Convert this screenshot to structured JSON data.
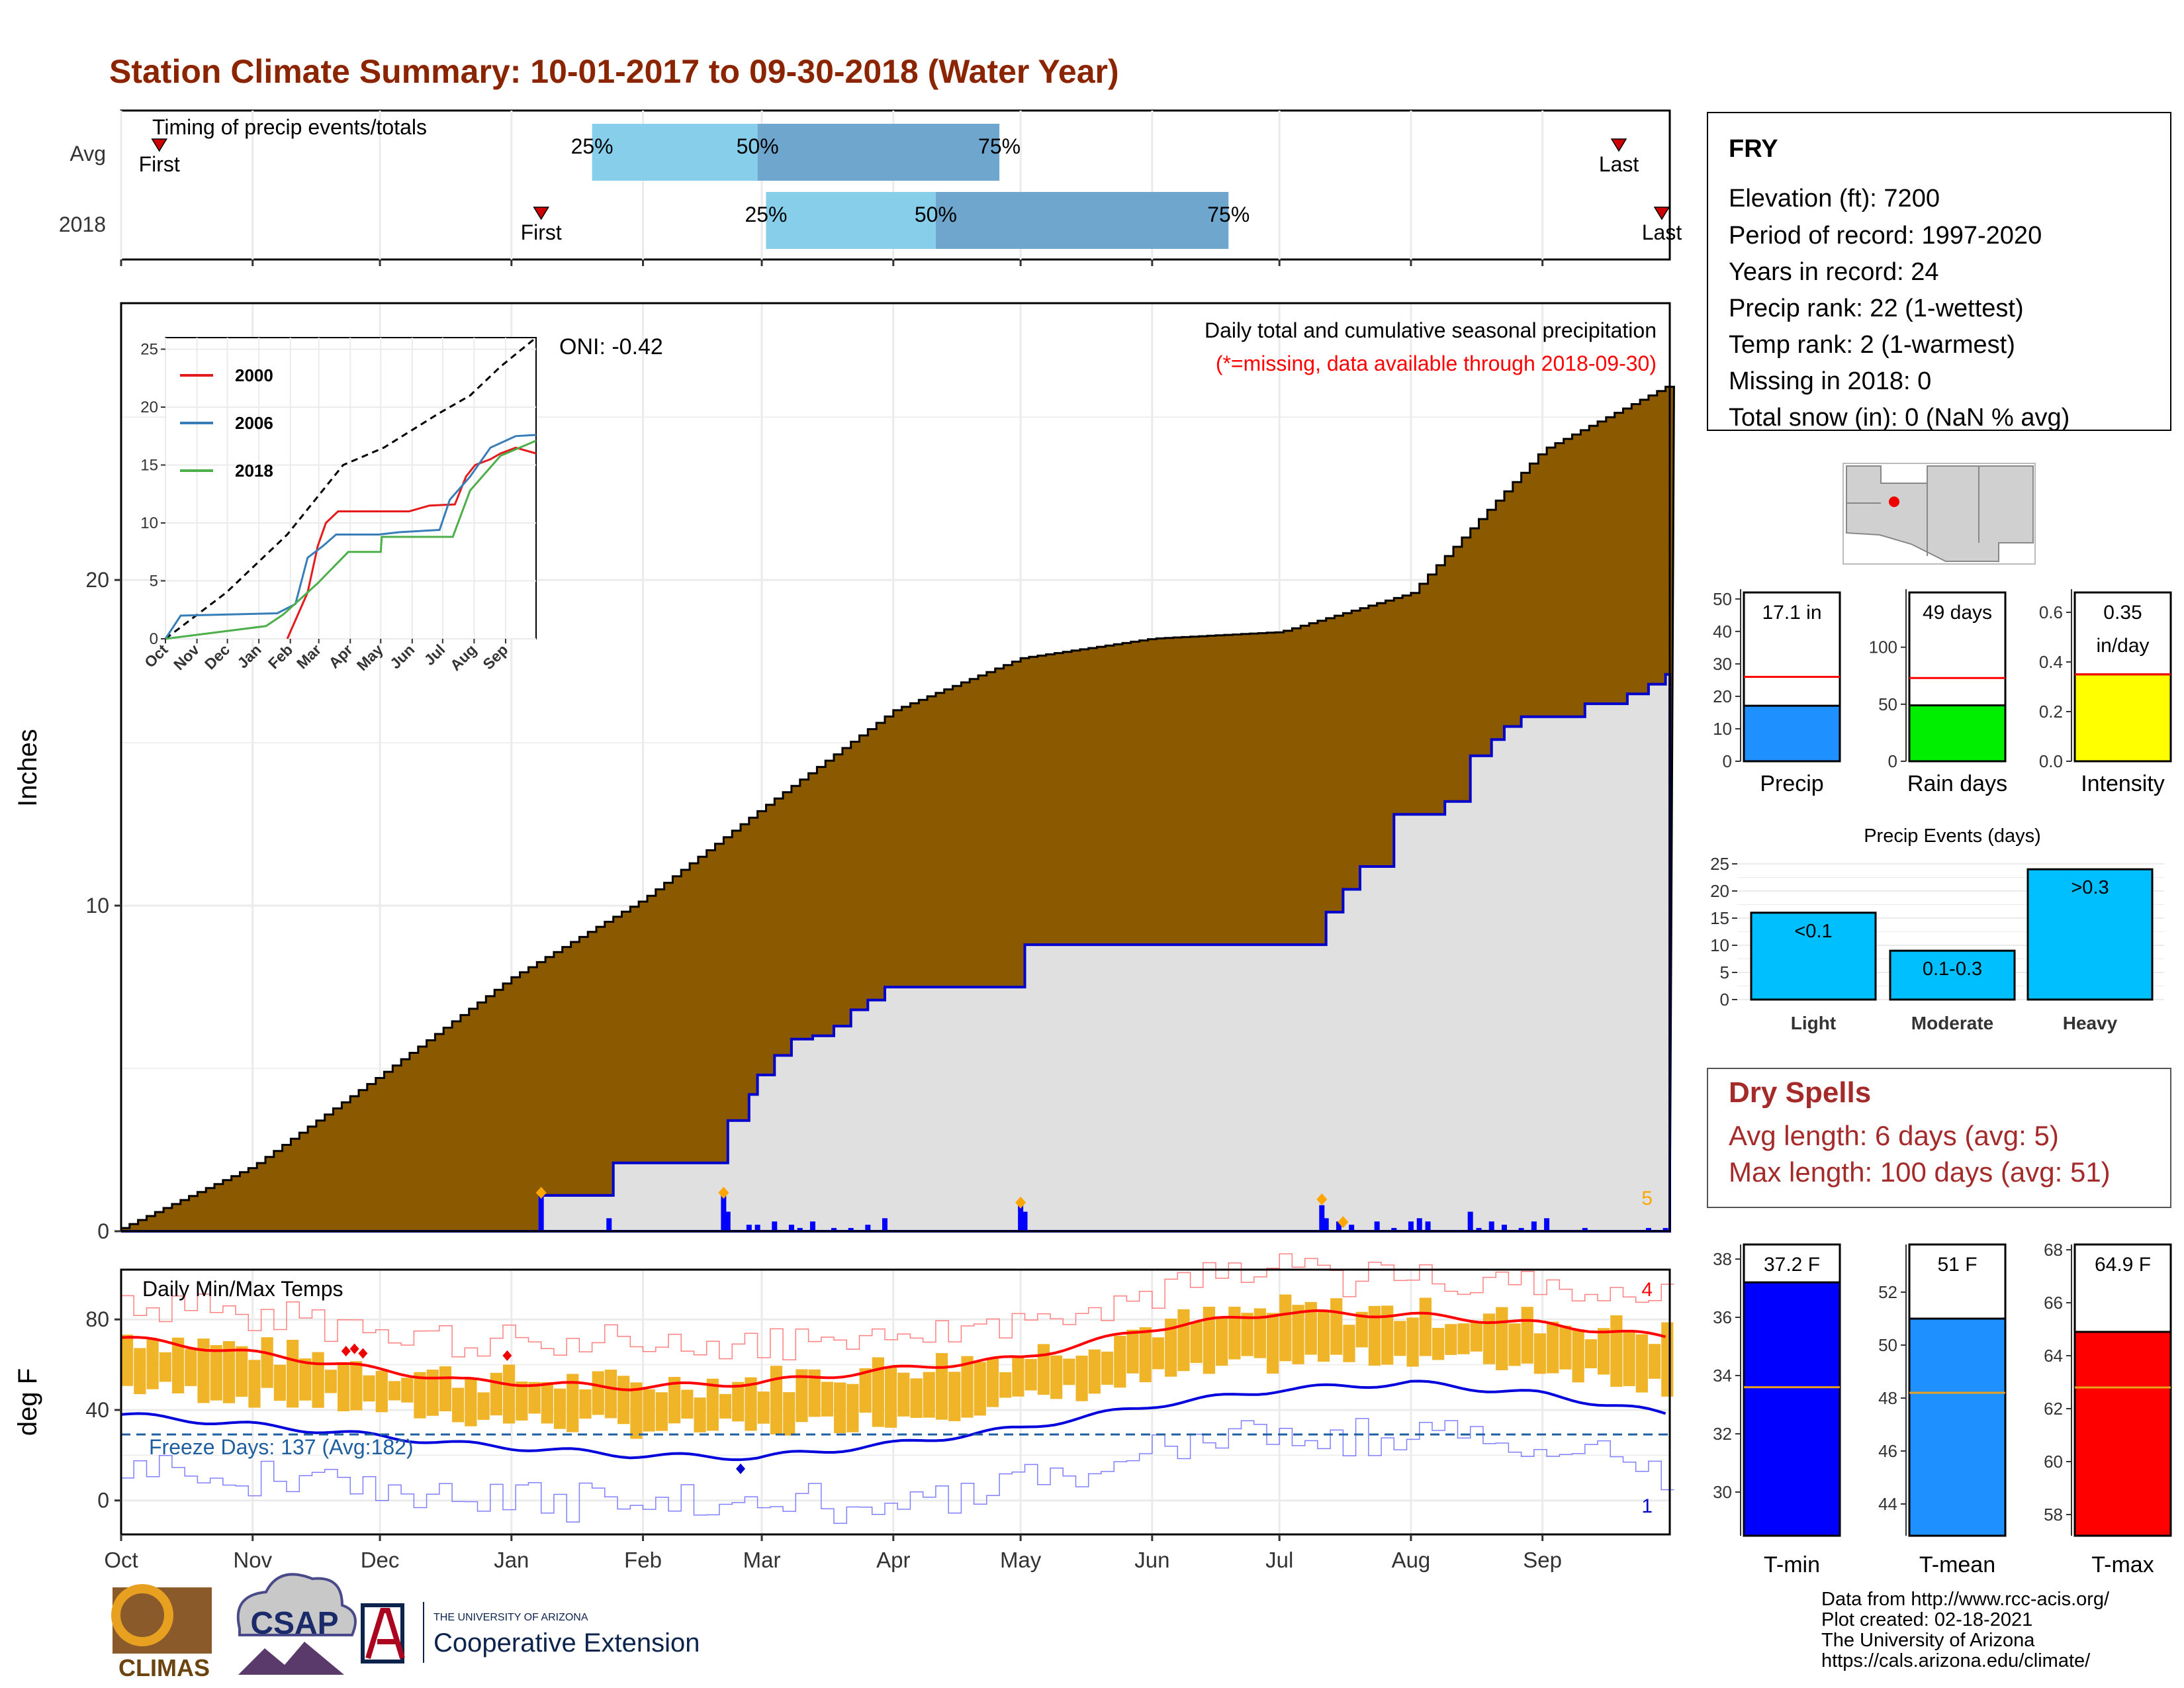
{
  "title": "Station Climate Summary: 10-01-2017 to 09-30-2018 (Water Year)",
  "timing_panel": {
    "label": "Timing of precip events/totals",
    "rows": [
      {
        "name": "Avg",
        "first_label": "First",
        "last_label": "Last",
        "first_day": 9,
        "p25_day": 111,
        "p50_day": 150,
        "p75_day": 207,
        "last_day": 353
      },
      {
        "name": "2018",
        "first_label": "First",
        "last_label": "Last",
        "first_day": 99,
        "p25_day": 152,
        "p50_day": 192,
        "p75_day": 261,
        "last_day": 364
      }
    ],
    "pct_labels": [
      "25%",
      "50%",
      "75%"
    ],
    "colors": {
      "first_half": "#87ceeb",
      "second_half": "#6ea6cd",
      "marker": "#cc0000"
    }
  },
  "precip_panel": {
    "ylabel": "Inches",
    "yticks": [
      "0",
      "10",
      "20"
    ],
    "ylim": [
      0,
      28.5
    ],
    "note_line1": "Daily total and cumulative seasonal precipitation",
    "note_line2": "(*=missing, data available through 2018-09-30)",
    "oni": "ONI: -0.42",
    "corner_count": "5",
    "colors": {
      "avg_fill": "#8b5a00",
      "year_fill": "#e0e0e0",
      "year_line": "#0000cc",
      "bars": "#0000ff",
      "diamond": "#ffa500"
    }
  },
  "inset_chart": {
    "yticks": [
      "0",
      "5",
      "10",
      "15",
      "20",
      "25"
    ],
    "xticks": [
      "Oct",
      "Nov",
      "Dec",
      "Jan",
      "Feb",
      "Mar",
      "Apr",
      "May",
      "Jun",
      "Jul",
      "Aug",
      "Sep"
    ],
    "legend": [
      {
        "name": "2000",
        "color": "#e41a1c"
      },
      {
        "name": "2006",
        "color": "#377eb8"
      },
      {
        "name": "2018",
        "color": "#4daf4a"
      }
    ]
  },
  "temp_panel": {
    "ylabel": "deg F",
    "label": "Daily Min/Max Temps",
    "yticks": [
      "0",
      "40",
      "80"
    ],
    "freeze_text": "Freeze Days: 137 (Avg:182)",
    "corner_top": "4",
    "corner_bottom": "1",
    "colors": {
      "bars": "#f0b428",
      "max_line": "#ff0000",
      "min_line": "#0000dd",
      "freeze": "#1f5fa0"
    }
  },
  "x_axis_months": [
    "Oct",
    "Nov",
    "Dec",
    "Jan",
    "Feb",
    "Mar",
    "Apr",
    "May",
    "Jun",
    "Jul",
    "Aug",
    "Sep"
  ],
  "station_info": {
    "name": "FRY",
    "lines": [
      "Elevation (ft): 7200",
      "Period of record: 1997-2020",
      "Years in record: 24",
      "Precip rank: 22 (1-wettest)",
      "Temp rank: 2 (1-warmest)",
      "Missing in 2018: 0",
      "Total snow (in): 0 (NaN % avg)"
    ]
  },
  "mini_bars": [
    {
      "label": "Precip",
      "value_text": "17.1 in",
      "value": 17.1,
      "avg": 26,
      "max": 52,
      "yticks": [
        "0",
        "10",
        "20",
        "30",
        "40",
        "50"
      ],
      "tick_vals": [
        0,
        10,
        20,
        30,
        40,
        50
      ],
      "color": "#1e90ff"
    },
    {
      "label": "Rain days",
      "value_text": "49 days",
      "value": 49,
      "avg": 73,
      "max": 148,
      "yticks": [
        "0",
        "50",
        "100"
      ],
      "tick_vals": [
        0,
        50,
        100
      ],
      "color": "#00ee00"
    },
    {
      "label": "Intensity",
      "value_text": "0.35 in/day",
      "value": 0.35,
      "avg": 0.35,
      "max": 0.68,
      "yticks": [
        "0.0",
        "0.2",
        "0.4",
        "0.6"
      ],
      "tick_vals": [
        0,
        0.2,
        0.4,
        0.6
      ],
      "color": "#ffff00"
    }
  ],
  "precip_events": {
    "title": "Precip Events (days)",
    "yticks": [
      "0",
      "5",
      "10",
      "15",
      "20",
      "25"
    ],
    "categories": [
      "Light",
      "Moderate",
      "Heavy"
    ],
    "bar_labels": [
      "<0.1",
      "0.1-0.3",
      ">0.3"
    ],
    "values": [
      16,
      9,
      24
    ],
    "color": "#00bfff"
  },
  "dry_spells": {
    "title": "Dry Spells",
    "line1": "Avg length: 6 days (avg: 5)",
    "line2": "Max length: 100 days (avg: 51)",
    "color": "#a52a2a"
  },
  "temp_bars": [
    {
      "label": "T-min",
      "value_text": "37.2 F",
      "value": 37.2,
      "avg": 33.6,
      "min": 28.5,
      "max": 38.5,
      "yticks": [
        "30",
        "32",
        "34",
        "36",
        "38"
      ],
      "tick_vals": [
        30,
        32,
        34,
        36,
        38
      ],
      "color": "#0000ff"
    },
    {
      "label": "T-mean",
      "value_text": "51 F",
      "value": 51.0,
      "avg": 48.2,
      "min": 42.8,
      "max": 53.8,
      "yticks": [
        "44",
        "46",
        "48",
        "50",
        "52"
      ],
      "tick_vals": [
        44,
        46,
        48,
        50,
        52
      ],
      "color": "#1e90ff"
    },
    {
      "label": "T-max",
      "value_text": "64.9 F",
      "value": 64.9,
      "avg": 62.8,
      "min": 57.2,
      "max": 68.2,
      "yticks": [
        "58",
        "60",
        "62",
        "64",
        "66",
        "68"
      ],
      "tick_vals": [
        58,
        60,
        62,
        64,
        66,
        68
      ],
      "color": "#ff0000"
    }
  ],
  "footer": {
    "lines": [
      "Data from http://www.rcc-acis.org/",
      "Plot created: 02-18-2021",
      "The University of Arizona",
      "https://cals.arizona.edu/climate/"
    ],
    "logo_climas": "CLIMAS",
    "logo_csap": "CSAP",
    "logo_ua_top": "THE UNIVERSITY OF ARIZONA",
    "logo_ua_bottom": "Cooperative Extension"
  },
  "chart_data": {
    "type": "area",
    "title": "Station Climate Summary: 10-01-2017 to 09-30-2018 (Water Year)",
    "xlabel": "",
    "ylabel": "Inches",
    "ylim": [
      0,
      28.5
    ],
    "x": [
      "Oct",
      "Nov",
      "Dec",
      "Jan",
      "Feb",
      "Mar",
      "Apr",
      "May",
      "Jun",
      "Jul",
      "Aug",
      "Sep",
      "Oct"
    ],
    "series": [
      {
        "values": [
          0.1,
          2.0,
          4.8,
          7.8,
          10.2,
          13.0,
          16.0,
          17.6,
          18.2,
          18.4,
          19.6,
          24.0,
          26.0
        ]
      },
      {
        "values": [
          0.0,
          0.0,
          0.0,
          1.1,
          2.1,
          5.9,
          7.5,
          8.8,
          8.8,
          8.8,
          12.8,
          16.1,
          17.1
        ]
      }
    ],
    "grid": true
  }
}
